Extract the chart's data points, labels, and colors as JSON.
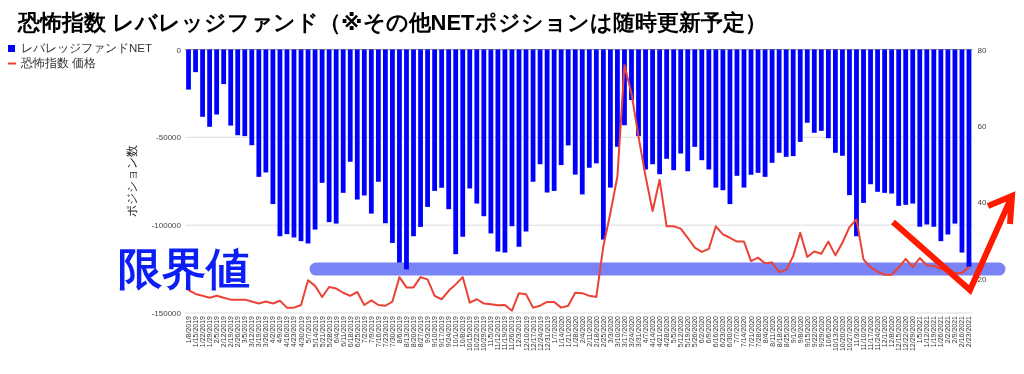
{
  "chart_data": {
    "type": "bar",
    "title": "恐怖指数 レバレッジファンド（※その他NETポジションは随時更新予定）",
    "ylabel": "ポジション数",
    "categories": [
      "1/8/2019",
      "1/15/2019",
      "1/22/2019",
      "1/29/2019",
      "2/5/2019",
      "2/12/2019",
      "2/19/2019",
      "2/26/2019",
      "3/5/2019",
      "3/12/2019",
      "3/19/2019",
      "3/26/2019",
      "4/2/2019",
      "4/9/2019",
      "4/16/2019",
      "4/23/2019",
      "4/30/2019",
      "5/7/2019",
      "5/14/2019",
      "5/21/2019",
      "5/28/2019",
      "6/4/2019",
      "6/11/2019",
      "6/18/2019",
      "6/25/2019",
      "7/2/2019",
      "7/9/2019",
      "7/16/2019",
      "7/23/2019",
      "7/30/2019",
      "8/6/2019",
      "8/13/2019",
      "8/20/2019",
      "8/27/2019",
      "9/3/2019",
      "9/10/2019",
      "9/17/2019",
      "9/24/2019",
      "10/1/2019",
      "10/8/2019",
      "10/15/2019",
      "10/22/2019",
      "10/29/2019",
      "11/5/2019",
      "11/12/2019",
      "11/19/2019",
      "11/26/2019",
      "12/3/2019",
      "12/10/2019",
      "12/17/2019",
      "12/24/2019",
      "12/31/2019",
      "1/7/2020",
      "1/14/2020",
      "1/21/2020",
      "1/28/2020",
      "2/4/2020",
      "2/11/2020",
      "2/18/2020",
      "2/25/2020",
      "3/3/2020",
      "3/10/2020",
      "3/17/2020",
      "3/24/2020",
      "3/31/2020",
      "4/7/2020",
      "4/14/2020",
      "4/21/2020",
      "4/28/2020",
      "5/5/2020",
      "5/12/2020",
      "5/19/2020",
      "5/26/2020",
      "6/2/2020",
      "6/9/2020",
      "6/16/2020",
      "6/23/2020",
      "6/30/2020",
      "7/7/2020",
      "7/14/2020",
      "7/21/2020",
      "7/28/2020",
      "8/4/2020",
      "8/11/2020",
      "8/18/2020",
      "8/25/2020",
      "9/1/2020",
      "9/8/2020",
      "9/15/2020",
      "9/22/2020",
      "9/29/2020",
      "10/6/2020",
      "10/13/2020",
      "10/20/2020",
      "10/27/2020",
      "11/3/2020",
      "11/10/2020",
      "11/17/2020",
      "11/24/2020",
      "12/1/2020",
      "12/8/2020",
      "12/15/2020",
      "12/22/2020",
      "12/29/2020",
      "1/5/2021",
      "1/12/2021",
      "1/19/2021",
      "1/26/2021",
      "2/2/2021",
      "2/9/2021",
      "2/16/2021",
      "2/23/2021"
    ],
    "series": [
      {
        "name": "レバレッジファンドNET",
        "color": "#0000ff",
        "values": [
          -22800,
          -12900,
          -38300,
          -44000,
          -37000,
          -19700,
          -43300,
          -48800,
          -49300,
          -54500,
          -72500,
          -70000,
          -88000,
          -106300,
          -105100,
          -107000,
          -109100,
          -110400,
          -102500,
          -75900,
          -98300,
          -99100,
          -81600,
          -63900,
          -85400,
          -83100,
          -93400,
          -75300,
          -98900,
          -110100,
          -121300,
          -125200,
          -106300,
          -101000,
          -89600,
          -80500,
          -78700,
          -90900,
          -116500,
          -106600,
          -79100,
          -87700,
          -94900,
          -104700,
          -115000,
          -115600,
          -100600,
          -112300,
          -103600,
          -75300,
          -65300,
          -81400,
          -80500,
          -65800,
          -54600,
          -71200,
          -82500,
          -67300,
          -64800,
          -108200,
          -78600,
          -55400,
          -43100,
          -28800,
          -49300,
          -68300,
          -65300,
          -71000,
          -62200,
          -68700,
          -59200,
          -69300,
          -55400,
          -63000,
          -68300,
          -78600,
          -80100,
          -88000,
          -71900,
          -78600,
          -71300,
          -70200,
          -72500,
          -64500,
          -58800,
          -61100,
          -60700,
          -52600,
          -41700,
          -47400,
          -46300,
          -50500,
          -58800,
          -60500,
          -82900,
          -106300,
          -87300,
          -76700,
          -81000,
          -81600,
          -82000,
          -89000,
          -88400,
          -87700,
          -100900,
          -99600,
          -100900,
          -109100,
          -105300,
          -99100,
          -115600,
          -123700
        ]
      },
      {
        "name": "恐怖指数 価格",
        "type": "line",
        "axis": "y2",
        "color": "#ea4335",
        "values": [
          17,
          16,
          15.5,
          15,
          15.5,
          15,
          14.5,
          14.5,
          14.5,
          14,
          13.5,
          14,
          13.5,
          14.2,
          12.4,
          12.4,
          13.1,
          19.6,
          18.1,
          15.2,
          17.8,
          17.4,
          16.3,
          15.5,
          16.5,
          13.1,
          14.3,
          13.1,
          12.9,
          14.0,
          20.4,
          17.7,
          17.7,
          20.4,
          19.8,
          15.5,
          14.6,
          16.8,
          18.5,
          20.4,
          13.7,
          14.6,
          13.5,
          13.3,
          13.0,
          13.1,
          11.6,
          16.2,
          15.9,
          12.4,
          12.9,
          13.9,
          13.9,
          12.4,
          12.9,
          16.3,
          16.2,
          15.5,
          15.2,
          28.5,
          37.2,
          46.8,
          75.9,
          68.5,
          57.2,
          46.8,
          37.7,
          45.9,
          33.7,
          33.7,
          33.1,
          30.7,
          28.1,
          27.0,
          27.8,
          33.7,
          31.6,
          30.7,
          29.7,
          29.7,
          24.6,
          25.5,
          24.0,
          24.2,
          21.7,
          22.3,
          25.9,
          32.0,
          25.7,
          27.1,
          26.5,
          29.7,
          26.1,
          29.4,
          33.5,
          35.5,
          25.0,
          23.0,
          21.8,
          21.0,
          21.0,
          22.9,
          25.2,
          23.0,
          25.4,
          23.5,
          23.3,
          22.5,
          22,
          21.5,
          21.5,
          23
        ]
      }
    ],
    "ylim": [
      -150000,
      0
    ],
    "yticks": [
      0,
      -50000,
      -100000,
      -150000
    ],
    "y2lim": [
      11,
      80
    ],
    "y2ticks": [
      20,
      40,
      60,
      80
    ],
    "grid": "y",
    "legend": "top left",
    "ref_lines": [
      {
        "axis": "y",
        "value": -125000,
        "label": "限界値",
        "color": "#6a75f5"
      }
    ]
  }
}
